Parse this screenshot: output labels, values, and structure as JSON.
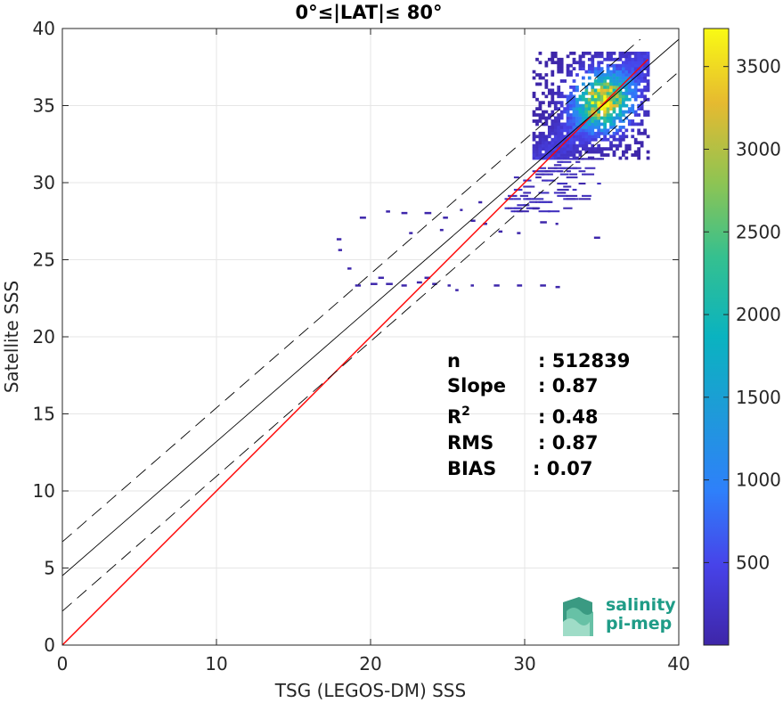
{
  "chart_data": {
    "type": "heatmap",
    "title": "0°≤|LAT|≤ 80°",
    "xlabel": "TSG (LEGOS-DM) SSS",
    "ylabel": "Satellite SSS",
    "xlim": [
      0,
      40
    ],
    "ylim": [
      0,
      40
    ],
    "xticks": [
      "0",
      "10",
      "20",
      "30",
      "40"
    ],
    "yticks": [
      "0",
      "5",
      "10",
      "15",
      "20",
      "25",
      "30",
      "35",
      "40"
    ],
    "grid": true,
    "colorbar": {
      "colormap": "parula",
      "range": [
        1,
        3730
      ],
      "ticks": [
        "500",
        "1000",
        "1500",
        "2000",
        "2500",
        "3000",
        "3500"
      ]
    },
    "lines": [
      {
        "role": "identity",
        "color": "#ff0000",
        "style": "solid",
        "points": [
          [
            0,
            0
          ],
          [
            38,
            38
          ]
        ]
      },
      {
        "role": "regression",
        "color": "#000000",
        "style": "solid",
        "points": [
          [
            0,
            4.5
          ],
          [
            40,
            39.3
          ]
        ]
      },
      {
        "role": "upper-bound",
        "color": "#000000",
        "style": "dashed",
        "points": [
          [
            0,
            6.7
          ],
          [
            37.5,
            39.3
          ]
        ]
      },
      {
        "role": "lower-bound",
        "color": "#000000",
        "style": "dashed",
        "points": [
          [
            0,
            2.2
          ],
          [
            40,
            37.2
          ]
        ]
      }
    ],
    "density_clusters": [
      {
        "x": [
          30.5,
          38
        ],
        "y": [
          31.5,
          38.5
        ],
        "peak": [
          35,
          35.2
        ],
        "peak_count": 3700
      },
      {
        "x": [
          28.5,
          35
        ],
        "y": [
          28,
          31.5
        ],
        "peak": [
          32,
          30.5
        ],
        "peak_count": 500
      }
    ],
    "sparse_points": [
      [
        19.3,
        27.8
      ],
      [
        21,
        28.2
      ],
      [
        22,
        28.1
      ],
      [
        23.5,
        28.1
      ],
      [
        24.7,
        27.8
      ],
      [
        25.8,
        28.3
      ],
      [
        26.5,
        27.6
      ],
      [
        27.3,
        27.4
      ],
      [
        28.3,
        26.9
      ],
      [
        29.5,
        26.8
      ],
      [
        22.5,
        26.8
      ],
      [
        24.5,
        27
      ],
      [
        17.8,
        26.4
      ],
      [
        17.9,
        25.7
      ],
      [
        18.5,
        24.5
      ],
      [
        19,
        23.4
      ],
      [
        20,
        23.5
      ],
      [
        21,
        23.5
      ],
      [
        22,
        23.4
      ],
      [
        23,
        23.6
      ],
      [
        24,
        23.5
      ],
      [
        25,
        23.4
      ],
      [
        26.5,
        23.4
      ],
      [
        28,
        23.4
      ],
      [
        29.5,
        23.4
      ],
      [
        31,
        23.4
      ],
      [
        32,
        23.3
      ],
      [
        20.5,
        23.9
      ],
      [
        23.5,
        23.9
      ],
      [
        25.5,
        23.1
      ],
      [
        32,
        27.4
      ],
      [
        31,
        27.5
      ],
      [
        30.5,
        28.4
      ],
      [
        34.5,
        26.5
      ],
      [
        27,
        28.8
      ]
    ],
    "stats": [
      {
        "label": "n",
        "value": ": 512839"
      },
      {
        "label": "Slope",
        "value": ": 0.87"
      },
      {
        "label": "R",
        "sup": "2",
        "value": ": 0.48"
      },
      {
        "label": "RMS",
        "value": ": 0.87"
      },
      {
        "label": "BIAS",
        "value": ": 0.07"
      }
    ]
  },
  "logo": {
    "line1": "salinity",
    "line2": "pi-mep"
  }
}
